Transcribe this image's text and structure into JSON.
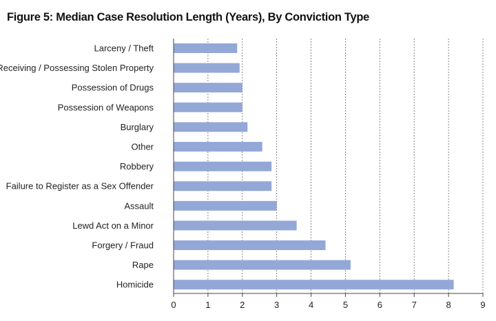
{
  "chart_data": {
    "type": "bar",
    "orientation": "horizontal",
    "title": "Figure 5: Median Case Resolution Length (Years), By Conviction Type",
    "categories": [
      "Larceny / Theft",
      "Receiving / Possessing Stolen Property",
      "Possession of Drugs",
      "Possession of Weapons",
      "Burglary",
      "Other",
      "Robbery",
      "Failure to Register as a Sex Offender",
      "Assault",
      "Lewd Act on a Minor",
      "Forgery / Fraud",
      "Rape",
      "Homicide"
    ],
    "values": [
      1.85,
      1.92,
      2.0,
      2.0,
      2.15,
      2.58,
      2.85,
      2.85,
      3.0,
      3.58,
      4.42,
      5.15,
      8.15
    ],
    "xlim": [
      0,
      9
    ],
    "xticks": [
      "0",
      "1",
      "2",
      "3",
      "4",
      "5",
      "6",
      "7",
      "8",
      "9"
    ],
    "xlabel": "",
    "ylabel": "",
    "grid": "vertical dashed",
    "legend": "none",
    "bar_color": "#93a8d6"
  }
}
